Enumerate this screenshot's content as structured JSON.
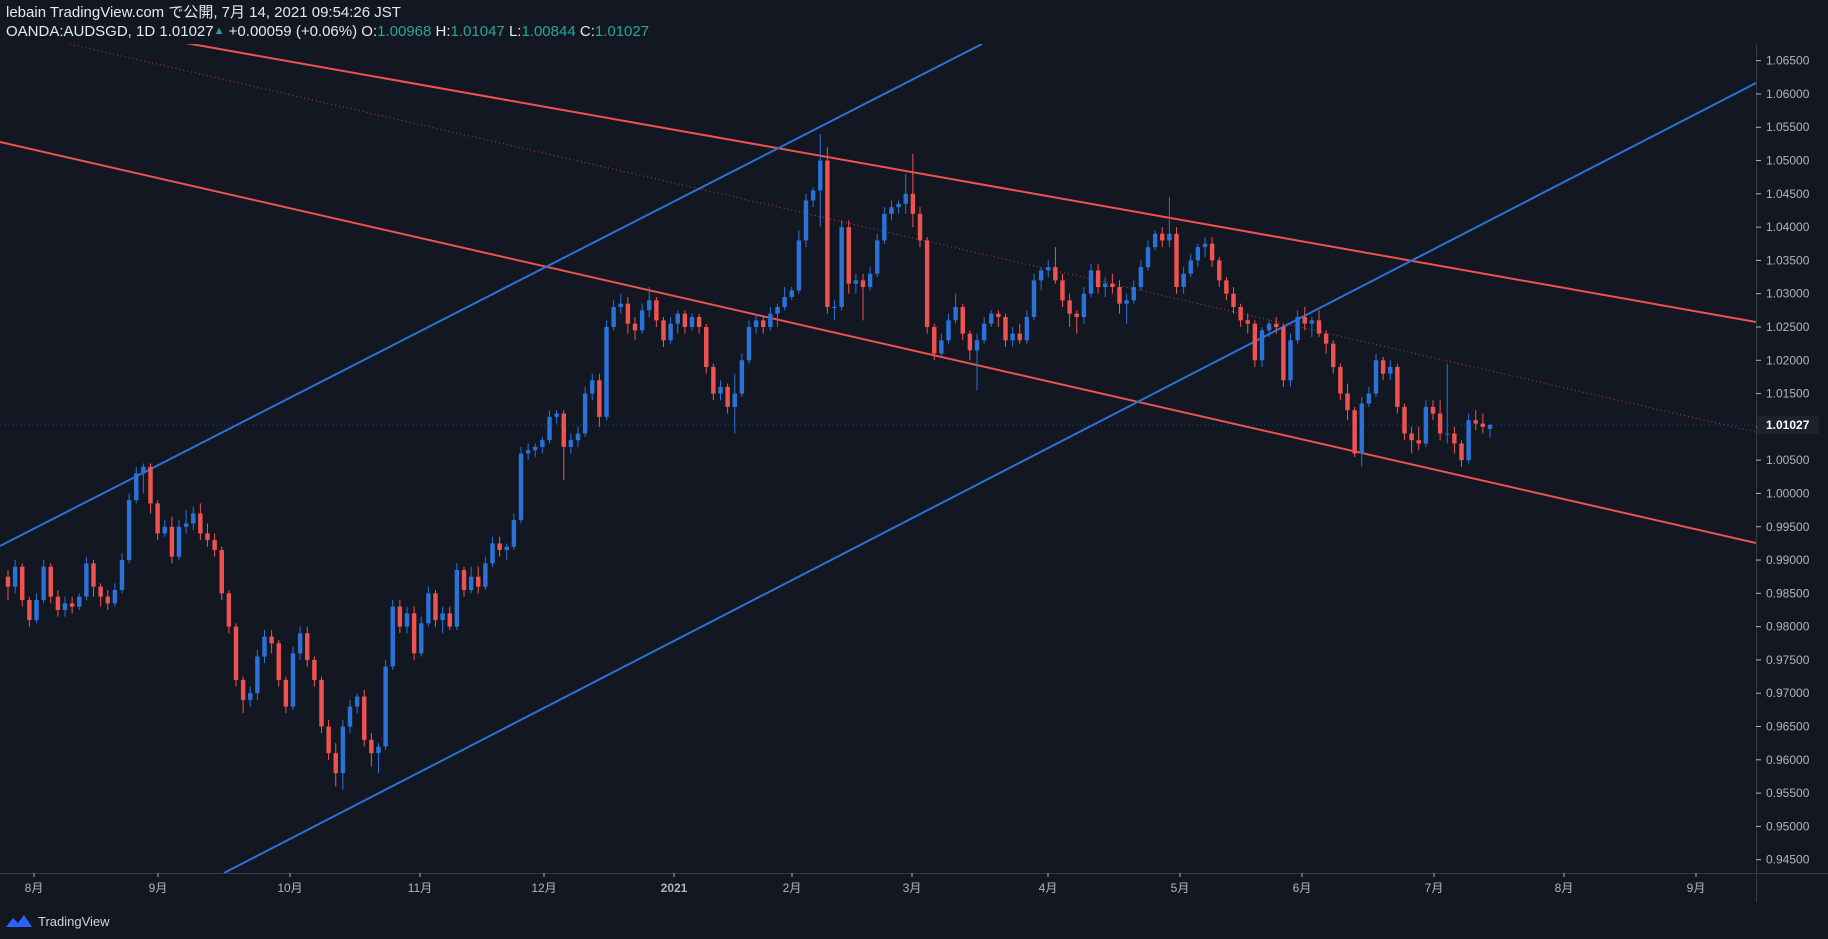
{
  "header": {
    "publisher": "lebain TradingView.com で公開, 7月 14, 2021 09:54:26 JST",
    "symbol": "OANDA:AUDSGD, 1D",
    "last": "1.01027",
    "change": "+0.00059 (+0.06%)",
    "o_label": "O:",
    "o_value": "1.00968",
    "h_label": "H:",
    "h_value": "1.01047",
    "l_label": "L:",
    "l_value": "1.00844",
    "c_label": "C:",
    "c_value": "1.01027"
  },
  "footer": {
    "brand": "TradingView"
  },
  "colors": {
    "background": "#131722",
    "up": "#2a72d8",
    "down": "#ef5350",
    "grid_text": "#b2b5be",
    "axis_line": "#363a45"
  },
  "chart_data": {
    "type": "candlestick",
    "ylim": [
      0.943,
      1.0675
    ],
    "y_ticks": [
      "1.06500",
      "1.06000",
      "1.05500",
      "1.05000",
      "1.04500",
      "1.04000",
      "1.03500",
      "1.03000",
      "1.02500",
      "1.02000",
      "1.01500",
      "1.01000",
      "1.00500",
      "1.00000",
      "0.99500",
      "0.99000",
      "0.98500",
      "0.98000",
      "0.97500",
      "0.97000",
      "0.96500",
      "0.96000",
      "0.95500",
      "0.95000",
      "0.94500"
    ],
    "x_ticks": [
      "8月",
      "9月",
      "10月",
      "11月",
      "12月",
      "2021",
      "2月",
      "3月",
      "4月",
      "5月",
      "6月",
      "7月",
      "8月",
      "9月"
    ],
    "last_price_label": "1.01027",
    "candles": [
      [
        0.9875,
        0.9885,
        0.984,
        0.986
      ],
      [
        0.986,
        0.99,
        0.985,
        0.989
      ],
      [
        0.989,
        0.9895,
        0.983,
        0.984
      ],
      [
        0.984,
        0.9845,
        0.98,
        0.981
      ],
      [
        0.981,
        0.985,
        0.9805,
        0.984
      ],
      [
        0.984,
        0.99,
        0.9835,
        0.989
      ],
      [
        0.989,
        0.9895,
        0.9835,
        0.9845
      ],
      [
        0.9845,
        0.9855,
        0.9815,
        0.9825
      ],
      [
        0.9825,
        0.9845,
        0.9815,
        0.9835
      ],
      [
        0.9835,
        0.9845,
        0.982,
        0.983
      ],
      [
        0.983,
        0.985,
        0.9825,
        0.9845
      ],
      [
        0.9845,
        0.9905,
        0.984,
        0.9895
      ],
      [
        0.9895,
        0.99,
        0.9845,
        0.986
      ],
      [
        0.986,
        0.9865,
        0.983,
        0.9845
      ],
      [
        0.9845,
        0.9855,
        0.9825,
        0.9835
      ],
      [
        0.9835,
        0.9865,
        0.983,
        0.9855
      ],
      [
        0.9855,
        0.991,
        0.985,
        0.99
      ],
      [
        0.99,
        1.0,
        0.9895,
        0.999
      ],
      [
        0.999,
        1.004,
        0.9985,
        1.003
      ],
      [
        1.003,
        1.0045,
        1.0,
        1.004
      ],
      [
        1.004,
        1.0045,
        0.997,
        0.9985
      ],
      [
        0.9985,
        0.999,
        0.993,
        0.994
      ],
      [
        0.994,
        0.996,
        0.9935,
        0.995
      ],
      [
        0.995,
        0.9965,
        0.9895,
        0.9905
      ],
      [
        0.9905,
        0.996,
        0.99,
        0.995
      ],
      [
        0.995,
        0.9975,
        0.994,
        0.9955
      ],
      [
        0.9955,
        0.998,
        0.9945,
        0.997
      ],
      [
        0.997,
        0.9985,
        0.993,
        0.994
      ],
      [
        0.994,
        0.9955,
        0.992,
        0.993
      ],
      [
        0.993,
        0.994,
        0.9905,
        0.9915
      ],
      [
        0.9915,
        0.992,
        0.984,
        0.985
      ],
      [
        0.985,
        0.9855,
        0.979,
        0.98
      ],
      [
        0.98,
        0.9805,
        0.971,
        0.972
      ],
      [
        0.972,
        0.9725,
        0.967,
        0.969
      ],
      [
        0.969,
        0.971,
        0.968,
        0.97
      ],
      [
        0.97,
        0.9765,
        0.969,
        0.9755
      ],
      [
        0.9755,
        0.9795,
        0.9745,
        0.9785
      ],
      [
        0.9785,
        0.9795,
        0.976,
        0.9775
      ],
      [
        0.9775,
        0.978,
        0.971,
        0.972
      ],
      [
        0.972,
        0.9725,
        0.967,
        0.968
      ],
      [
        0.968,
        0.977,
        0.9675,
        0.976
      ],
      [
        0.976,
        0.98,
        0.975,
        0.979
      ],
      [
        0.979,
        0.98,
        0.974,
        0.975
      ],
      [
        0.975,
        0.9755,
        0.971,
        0.972
      ],
      [
        0.972,
        0.9725,
        0.964,
        0.965
      ],
      [
        0.965,
        0.966,
        0.96,
        0.961
      ],
      [
        0.961,
        0.9625,
        0.956,
        0.958
      ],
      [
        0.958,
        0.966,
        0.9555,
        0.965
      ],
      [
        0.965,
        0.969,
        0.964,
        0.968
      ],
      [
        0.968,
        0.97,
        0.967,
        0.9695
      ],
      [
        0.9695,
        0.9705,
        0.962,
        0.963
      ],
      [
        0.963,
        0.964,
        0.959,
        0.961
      ],
      [
        0.961,
        0.9625,
        0.958,
        0.962
      ],
      [
        0.962,
        0.975,
        0.9615,
        0.974
      ],
      [
        0.974,
        0.984,
        0.9735,
        0.983
      ],
      [
        0.983,
        0.984,
        0.979,
        0.98
      ],
      [
        0.98,
        0.983,
        0.979,
        0.982
      ],
      [
        0.982,
        0.983,
        0.975,
        0.976
      ],
      [
        0.976,
        0.9815,
        0.9755,
        0.9805
      ],
      [
        0.9805,
        0.986,
        0.98,
        0.985
      ],
      [
        0.985,
        0.9855,
        0.98,
        0.981
      ],
      [
        0.981,
        0.983,
        0.979,
        0.982
      ],
      [
        0.982,
        0.983,
        0.9795,
        0.98
      ],
      [
        0.98,
        0.9895,
        0.9795,
        0.9885
      ],
      [
        0.9885,
        0.989,
        0.9845,
        0.9855
      ],
      [
        0.9855,
        0.989,
        0.985,
        0.9875
      ],
      [
        0.9875,
        0.989,
        0.985,
        0.986
      ],
      [
        0.986,
        0.9905,
        0.9855,
        0.9895
      ],
      [
        0.9895,
        0.9935,
        0.989,
        0.9925
      ],
      [
        0.9925,
        0.9935,
        0.9905,
        0.9915
      ],
      [
        0.9915,
        0.9925,
        0.99,
        0.992
      ],
      [
        0.992,
        0.997,
        0.9915,
        0.996
      ],
      [
        0.996,
        1.007,
        0.9955,
        1.006
      ],
      [
        1.006,
        1.0075,
        1.005,
        1.0065
      ],
      [
        1.0065,
        1.0075,
        1.0055,
        1.007
      ],
      [
        1.007,
        1.0085,
        1.006,
        1.008
      ],
      [
        1.008,
        1.0125,
        1.0075,
        1.0115
      ],
      [
        1.0115,
        1.0125,
        1.0105,
        1.012
      ],
      [
        1.012,
        1.0125,
        1.002,
        1.007
      ],
      [
        1.007,
        1.009,
        1.006,
        1.008
      ],
      [
        1.008,
        1.01,
        1.007,
        1.009
      ],
      [
        1.009,
        1.016,
        1.0085,
        1.015
      ],
      [
        1.015,
        1.018,
        1.014,
        1.017
      ],
      [
        1.017,
        1.018,
        1.01,
        1.0115
      ],
      [
        1.0115,
        1.026,
        1.011,
        1.025
      ],
      [
        1.025,
        1.029,
        1.0245,
        1.028
      ],
      [
        1.028,
        1.03,
        1.027,
        1.0285
      ],
      [
        1.0285,
        1.0295,
        1.024,
        1.0255
      ],
      [
        1.0255,
        1.0265,
        1.023,
        1.0245
      ],
      [
        1.0245,
        1.0285,
        1.024,
        1.0275
      ],
      [
        1.0275,
        1.031,
        1.0265,
        1.029
      ],
      [
        1.029,
        1.0295,
        1.025,
        1.026
      ],
      [
        1.026,
        1.0265,
        1.022,
        1.023
      ],
      [
        1.023,
        1.0265,
        1.0225,
        1.0255
      ],
      [
        1.0255,
        1.0275,
        1.024,
        1.027
      ],
      [
        1.027,
        1.0275,
        1.024,
        1.025
      ],
      [
        1.025,
        1.027,
        1.0245,
        1.0265
      ],
      [
        1.0265,
        1.027,
        1.024,
        1.025
      ],
      [
        1.025,
        1.0255,
        1.018,
        1.019
      ],
      [
        1.019,
        1.0195,
        1.014,
        1.015
      ],
      [
        1.015,
        1.017,
        1.014,
        1.016
      ],
      [
        1.016,
        1.0165,
        1.012,
        1.013
      ],
      [
        1.013,
        1.018,
        1.009,
        1.015
      ],
      [
        1.015,
        1.021,
        1.0145,
        1.02
      ],
      [
        1.02,
        1.026,
        1.0195,
        1.025
      ],
      [
        1.025,
        1.027,
        1.024,
        1.026
      ],
      [
        1.026,
        1.0265,
        1.024,
        1.025
      ],
      [
        1.025,
        1.028,
        1.0245,
        1.027
      ],
      [
        1.027,
        1.0285,
        1.025,
        1.028
      ],
      [
        1.028,
        1.031,
        1.0275,
        1.0295
      ],
      [
        1.0295,
        1.031,
        1.029,
        1.0305
      ],
      [
        1.0305,
        1.0395,
        1.03,
        1.038
      ],
      [
        1.038,
        1.045,
        1.037,
        1.044
      ],
      [
        1.044,
        1.046,
        1.043,
        1.0455
      ],
      [
        1.0455,
        1.054,
        1.04,
        1.05
      ],
      [
        1.05,
        1.052,
        1.027,
        1.028
      ],
      [
        1.028,
        1.029,
        1.026,
        1.028
      ],
      [
        1.028,
        1.041,
        1.0275,
        1.04
      ],
      [
        1.04,
        1.041,
        1.03,
        1.0315
      ],
      [
        1.0315,
        1.033,
        1.03,
        1.032
      ],
      [
        1.032,
        1.033,
        1.026,
        1.031
      ],
      [
        1.031,
        1.034,
        1.0305,
        1.033
      ],
      [
        1.033,
        1.039,
        1.0325,
        1.038
      ],
      [
        1.038,
        1.043,
        1.0375,
        1.042
      ],
      [
        1.042,
        1.044,
        1.041,
        1.043
      ],
      [
        1.043,
        1.044,
        1.042,
        1.0435
      ],
      [
        1.0435,
        1.048,
        1.042,
        1.045
      ],
      [
        1.045,
        1.051,
        1.04,
        1.042
      ],
      [
        1.042,
        1.043,
        1.037,
        1.038
      ],
      [
        1.038,
        1.0385,
        1.024,
        1.025
      ],
      [
        1.025,
        1.0255,
        1.02,
        1.021
      ],
      [
        1.021,
        1.024,
        1.0205,
        1.023
      ],
      [
        1.023,
        1.027,
        1.0225,
        1.026
      ],
      [
        1.026,
        1.03,
        1.0255,
        1.028
      ],
      [
        1.028,
        1.0285,
        1.023,
        1.024
      ],
      [
        1.024,
        1.0245,
        1.02,
        1.0215
      ],
      [
        1.0215,
        1.024,
        1.0155,
        1.023
      ],
      [
        1.023,
        1.0265,
        1.0225,
        1.0255
      ],
      [
        1.0255,
        1.0275,
        1.025,
        1.027
      ],
      [
        1.027,
        1.0275,
        1.025,
        1.0265
      ],
      [
        1.0265,
        1.027,
        1.022,
        1.023
      ],
      [
        1.023,
        1.025,
        1.022,
        1.024
      ],
      [
        1.024,
        1.0255,
        1.0225,
        1.023
      ],
      [
        1.023,
        1.0275,
        1.0225,
        1.0265
      ],
      [
        1.0265,
        1.033,
        1.026,
        1.032
      ],
      [
        1.032,
        1.034,
        1.0305,
        1.0335
      ],
      [
        1.0335,
        1.035,
        1.0325,
        1.034
      ],
      [
        1.034,
        1.037,
        1.0315,
        1.032
      ],
      [
        1.032,
        1.033,
        1.028,
        1.029
      ],
      [
        1.029,
        1.03,
        1.025,
        1.027
      ],
      [
        1.027,
        1.0275,
        1.024,
        1.0265
      ],
      [
        1.0265,
        1.031,
        1.0255,
        1.03
      ],
      [
        1.03,
        1.0345,
        1.0295,
        1.0335
      ],
      [
        1.0335,
        1.0345,
        1.03,
        1.031
      ],
      [
        1.031,
        1.0325,
        1.0295,
        1.0315
      ],
      [
        1.0315,
        1.033,
        1.03,
        1.031
      ],
      [
        1.031,
        1.032,
        1.027,
        1.0285
      ],
      [
        1.0285,
        1.03,
        1.0255,
        1.029
      ],
      [
        1.029,
        1.032,
        1.0285,
        1.031
      ],
      [
        1.031,
        1.035,
        1.0305,
        1.034
      ],
      [
        1.034,
        1.038,
        1.0335,
        1.037
      ],
      [
        1.037,
        1.0395,
        1.0365,
        1.039
      ],
      [
        1.039,
        1.04,
        1.037,
        1.038
      ],
      [
        1.038,
        1.0445,
        1.037,
        1.039
      ],
      [
        1.039,
        1.04,
        1.03,
        1.031
      ],
      [
        1.031,
        1.034,
        1.03,
        1.033
      ],
      [
        1.033,
        1.036,
        1.0325,
        1.035
      ],
      [
        1.035,
        1.0375,
        1.034,
        1.037
      ],
      [
        1.037,
        1.0385,
        1.0355,
        1.0375
      ],
      [
        1.0375,
        1.0385,
        1.034,
        1.035
      ],
      [
        1.035,
        1.0355,
        1.031,
        1.032
      ],
      [
        1.032,
        1.0325,
        1.029,
        1.03
      ],
      [
        1.03,
        1.031,
        1.027,
        1.028
      ],
      [
        1.028,
        1.0285,
        1.025,
        1.026
      ],
      [
        1.026,
        1.027,
        1.024,
        1.0255
      ],
      [
        1.0255,
        1.026,
        1.019,
        1.02
      ],
      [
        1.02,
        1.025,
        1.019,
        1.0245
      ],
      [
        1.0245,
        1.026,
        1.0235,
        1.0255
      ],
      [
        1.0255,
        1.0265,
        1.024,
        1.025
      ],
      [
        1.025,
        1.0255,
        1.016,
        1.017
      ],
      [
        1.017,
        1.024,
        1.016,
        1.023
      ],
      [
        1.023,
        1.0275,
        1.0225,
        1.0265
      ],
      [
        1.0265,
        1.028,
        1.0245,
        1.0255
      ],
      [
        1.0255,
        1.0265,
        1.0235,
        1.026
      ],
      [
        1.026,
        1.0275,
        1.0235,
        1.024
      ],
      [
        1.024,
        1.0245,
        1.021,
        1.0225
      ],
      [
        1.0225,
        1.023,
        1.018,
        1.019
      ],
      [
        1.019,
        1.0195,
        1.014,
        1.015
      ],
      [
        1.015,
        1.0165,
        1.011,
        1.0125
      ],
      [
        1.0125,
        1.013,
        1.0055,
        1.006
      ],
      [
        1.006,
        1.0145,
        1.004,
        1.0135
      ],
      [
        1.0135,
        1.016,
        1.013,
        1.015
      ],
      [
        1.015,
        1.021,
        1.0145,
        1.02
      ],
      [
        1.02,
        1.0205,
        1.017,
        1.018
      ],
      [
        1.018,
        1.02,
        1.017,
        1.019
      ],
      [
        1.019,
        1.0195,
        1.012,
        1.013
      ],
      [
        1.013,
        1.0135,
        1.008,
        1.009
      ],
      [
        1.009,
        1.01,
        1.006,
        1.008
      ],
      [
        1.008,
        1.01,
        1.0065,
        1.0075
      ],
      [
        1.0075,
        1.014,
        1.007,
        1.013
      ],
      [
        1.013,
        1.014,
        1.011,
        1.012
      ],
      [
        1.012,
        1.014,
        1.008,
        1.009
      ],
      [
        1.009,
        1.0195,
        1.0075,
        1.009
      ],
      [
        1.009,
        1.01,
        1.006,
        1.0075
      ],
      [
        1.0075,
        1.008,
        1.004,
        1.005
      ],
      [
        1.005,
        1.012,
        1.0045,
        1.011
      ],
      [
        1.011,
        1.0125,
        1.0095,
        1.0105
      ],
      [
        1.0105,
        1.012,
        1.009,
        1.01
      ],
      [
        1.0097,
        1.0105,
        1.0084,
        1.0103
      ]
    ]
  }
}
